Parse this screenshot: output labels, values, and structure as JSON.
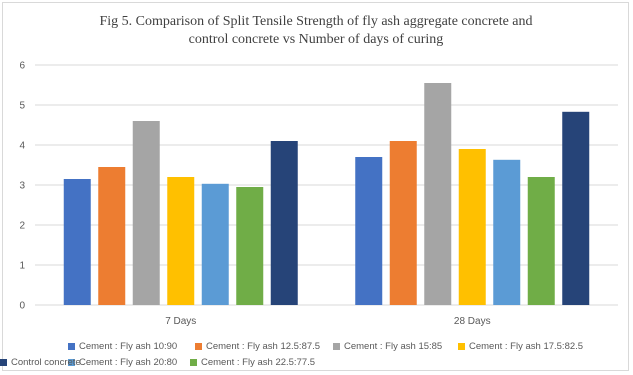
{
  "chart_data": {
    "type": "bar",
    "title": "Fig 5. Comparison of Split Tensile Strength of fly ash aggregate concrete and control concrete vs Number of days of curing",
    "title_lines": [
      "Fig 5. Comparison of Split Tensile Strength of fly ash aggregate concrete and",
      "control concrete vs Number of days of curing"
    ],
    "categories": [
      "7 Days",
      "28 Days"
    ],
    "ylim": [
      0,
      6
    ],
    "yticks": [
      "0",
      "1",
      "2",
      "3",
      "4",
      "5",
      "6"
    ],
    "grid": true,
    "legend_position": "bottom",
    "series": [
      {
        "name": "Cement : Fly ash 10:90",
        "color": "#4472C4",
        "values": [
          3.15,
          3.7
        ]
      },
      {
        "name": "Cement : Fly ash 12.5:87.5",
        "color": "#ED7D31",
        "values": [
          3.45,
          4.1
        ]
      },
      {
        "name": "Cement : Fly ash 15:85",
        "color": "#A5A5A5",
        "values": [
          4.6,
          5.55
        ]
      },
      {
        "name": "Cement : Fly ash 17.5:82.5",
        "color": "#FFC000",
        "values": [
          3.2,
          3.9
        ]
      },
      {
        "name": "Cement : Fly ash 20:80",
        "color": "#5B9BD5",
        "values": [
          3.03,
          3.63
        ]
      },
      {
        "name": "Cement : Fly ash 22.5:77.5",
        "color": "#70AD47",
        "values": [
          2.95,
          3.2
        ]
      },
      {
        "name": "Control concrete",
        "color": "#264478",
        "values": [
          4.1,
          4.83
        ]
      }
    ]
  }
}
